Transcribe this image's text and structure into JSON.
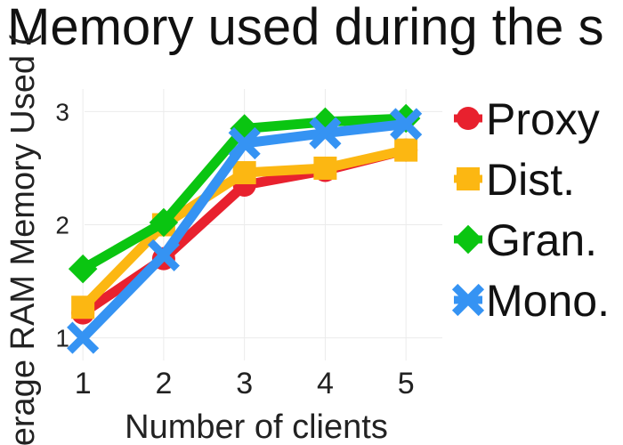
{
  "chart_data": {
    "type": "line",
    "title": "Memory used during the s",
    "xlabel": "Number of clients",
    "ylabel": "erage RAM Memory Used (",
    "x": [
      1,
      2,
      3,
      4,
      5
    ],
    "xlim": [
      0.8,
      5.45
    ],
    "ylim": [
      0.8,
      3.2
    ],
    "xticks": [
      "1",
      "2",
      "3",
      "4",
      "5"
    ],
    "yticks": [
      "1",
      "2",
      "3"
    ],
    "grid": true,
    "legend_position": "right",
    "series": [
      {
        "name": "Proxy",
        "color": "#e8212e",
        "marker": "circle",
        "values": [
          1.22,
          1.7,
          2.35,
          2.48,
          2.66
        ]
      },
      {
        "name": "Dist.",
        "color": "#fcb712",
        "marker": "square",
        "values": [
          1.27,
          2.0,
          2.46,
          2.5,
          2.66
        ]
      },
      {
        "name": "Gran.",
        "color": "#0ac511",
        "marker": "diamond",
        "values": [
          1.61,
          2.02,
          2.85,
          2.91,
          2.94
        ]
      },
      {
        "name": "Mono.",
        "color": "#3593f3",
        "marker": "x",
        "values": [
          1.0,
          1.73,
          2.72,
          2.81,
          2.89
        ]
      }
    ]
  }
}
